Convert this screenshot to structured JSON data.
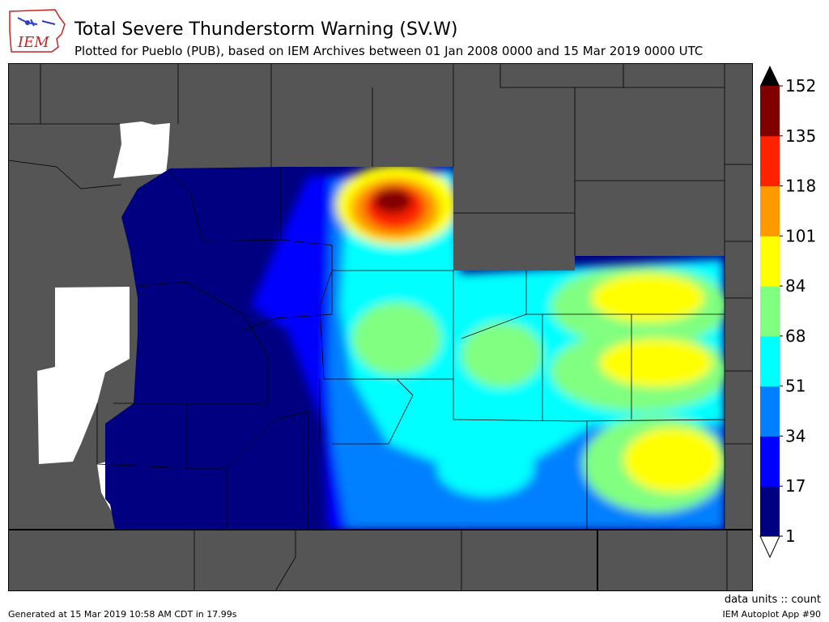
{
  "header": {
    "logo_text": "IEM",
    "title": "Total Severe Thunderstorm Warning (SV.W)",
    "subtitle": "Plotted for Pueblo (PUB), based on IEM Archives  between 01 Jan 2008 0000 and 15 Mar 2019 0000 UTC"
  },
  "colorbar": {
    "ticks": [
      "1",
      "17",
      "34",
      "51",
      "68",
      "84",
      "101",
      "118",
      "135",
      "152"
    ],
    "colors": [
      "#000080",
      "#0000ff",
      "#0080ff",
      "#00ffff",
      "#80ff80",
      "#ffff00",
      "#ff9900",
      "#ff2200",
      "#800000"
    ],
    "over_color": "#000000",
    "under_color": "#ffffff"
  },
  "map": {
    "background_color": "#555555",
    "no_data_color": "#ffffff",
    "boundary_color": "#000000"
  },
  "footer": {
    "units": "data units :: count",
    "generated": "Generated at 15 Mar 2019 10:58 AM CDT in 17.99s",
    "app": "IEM Autoplot App #90"
  }
}
